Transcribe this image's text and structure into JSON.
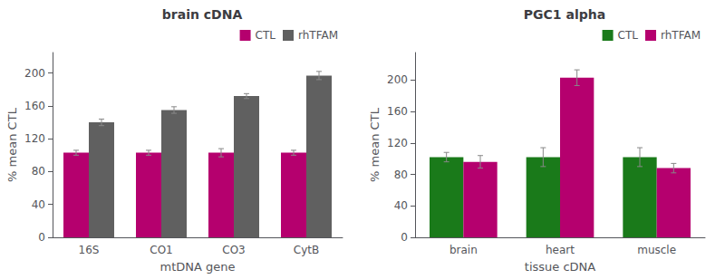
{
  "chart_data": [
    {
      "type": "bar",
      "title": "brain cDNA",
      "xlabel": "mtDNA gene",
      "ylabel": "% mean CTL",
      "categories": [
        "16S",
        "CO1",
        "CO3",
        "CytB"
      ],
      "series": [
        {
          "name": "CTL",
          "color": "#B5006E",
          "values": [
            103,
            103,
            103,
            103
          ],
          "errors": [
            3,
            3,
            5,
            3
          ]
        },
        {
          "name": "rhTFAM",
          "color": "#606060",
          "values": [
            140,
            155,
            172,
            197
          ],
          "errors": [
            4,
            4,
            3,
            5
          ]
        }
      ],
      "ylim": [
        0,
        225
      ],
      "yticks": [
        0,
        40,
        80,
        120,
        160,
        200
      ],
      "grid": false,
      "legend": "upper right"
    },
    {
      "type": "bar",
      "title": "PGC1 alpha",
      "xlabel": "tissue cDNA",
      "ylabel": "% mean CTL",
      "categories": [
        "brain",
        "heart",
        "muscle"
      ],
      "series": [
        {
          "name": "CTL",
          "color": "#1A7A1A",
          "values": [
            102,
            102,
            102
          ],
          "errors": [
            6,
            12,
            12
          ]
        },
        {
          "name": "rhTFAM",
          "color": "#B5006E",
          "values": [
            96,
            203,
            88
          ],
          "errors": [
            8,
            10,
            6
          ]
        }
      ],
      "ylim": [
        0,
        235
      ],
      "yticks": [
        0,
        40,
        80,
        120,
        160,
        200
      ],
      "grid": false,
      "legend": "upper right"
    }
  ]
}
